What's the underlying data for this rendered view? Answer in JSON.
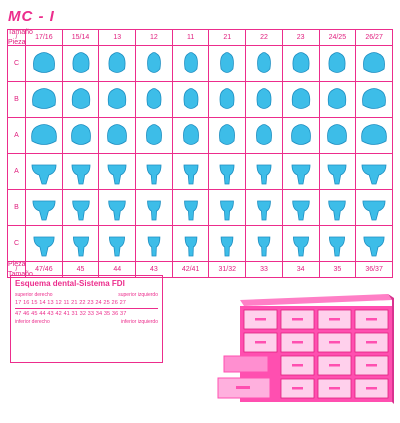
{
  "title": "MC - I",
  "corner_top": "Tamaño / Pieza",
  "corner_bottom": "Pieza / Tamaño",
  "top_columns": [
    "17/16",
    "15/14",
    "13",
    "12",
    "11",
    "21",
    "22",
    "23",
    "24/25",
    "26/27"
  ],
  "bottom_columns": [
    "47/46",
    "45",
    "44",
    "43",
    "42/41",
    "31/32",
    "33",
    "34",
    "35",
    "36/37"
  ],
  "upper_rows": [
    "C",
    "B",
    "A"
  ],
  "lower_rows": [
    "A",
    "B",
    "C"
  ],
  "colors": {
    "accent": "#ec2d8c",
    "tooth": "#3dbde8",
    "cabinet": "#ff4fb0"
  },
  "legend": {
    "title": "Esquema dental-Sistema FDI",
    "upper_right": "superior derecho",
    "upper_left": "superior izquierdo",
    "upper_numbers": "17 16 15 14 13 12 11 21 22 23 24 25 26 27",
    "lower_numbers": "47 46 45 44 43 42 41 31 32 33 34 35 36 37",
    "lower_right": "inferior derecho",
    "lower_left": "inferior izquierdo"
  }
}
